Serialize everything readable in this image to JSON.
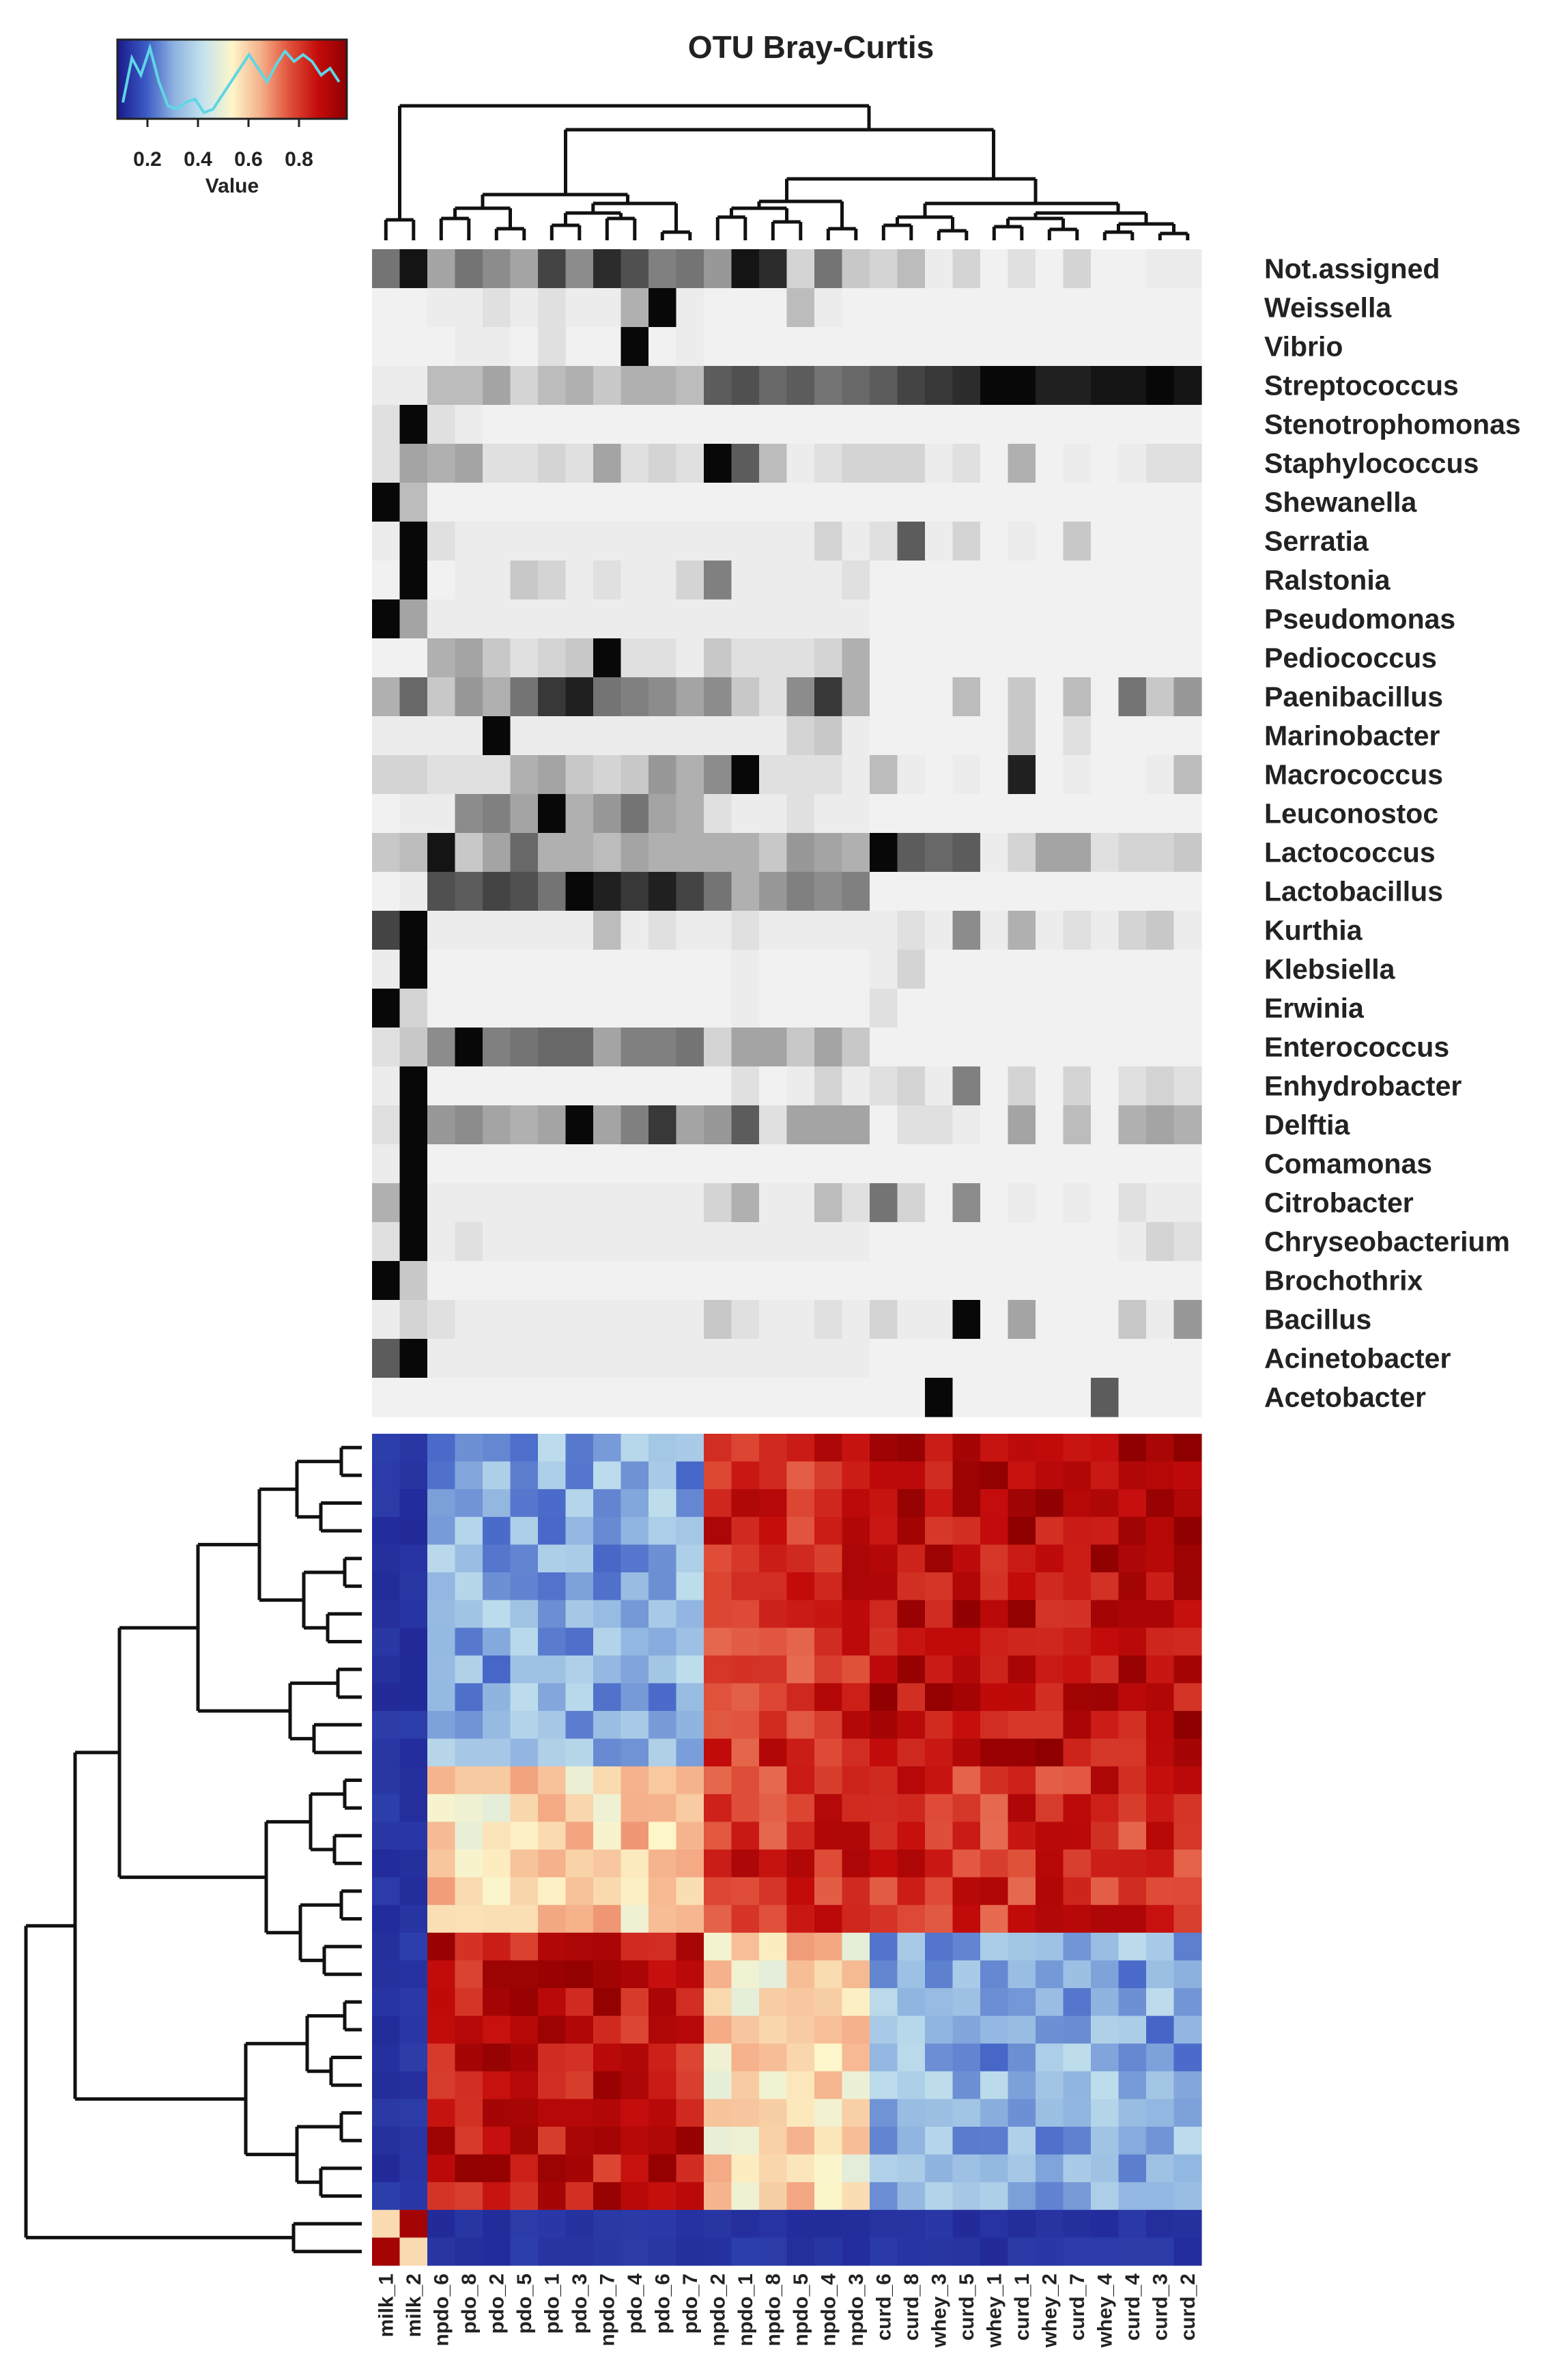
{
  "chart_data": {
    "type": "heatmap",
    "title": "OTU Bray-Curtis",
    "legend": {
      "title": "Value",
      "ticks": [
        "0.2",
        "0.4",
        "0.6",
        "0.8"
      ],
      "palette": [
        "#1a1a8c",
        "#3b5bc4",
        "#8fb4e0",
        "#c5e3ee",
        "#fdf6c9",
        "#f5b08a",
        "#e0513a",
        "#c40b0b",
        "#8e0000"
      ],
      "histogram_color": "#5fd6e6",
      "placement": "top-left"
    },
    "samples": [
      "milk_1",
      "milk_2",
      "npdo_6",
      "pdo_8",
      "pdo_2",
      "pdo_5",
      "pdo_1",
      "pdo_3",
      "npdo_7",
      "pdo_4",
      "pdo_6",
      "pdo_7",
      "npdo_2",
      "npdo_1",
      "npdo_8",
      "npdo_5",
      "npdo_4",
      "npdo_3",
      "curd_6",
      "curd_8",
      "whey_3",
      "curd_5",
      "whey_1",
      "curd_1",
      "whey_2",
      "curd_7",
      "whey_4",
      "curd_4",
      "curd_3",
      "curd_2"
    ],
    "taxa": [
      "Not.assigned",
      "Weissella",
      "Vibrio",
      "Streptococcus",
      "Stenotrophomonas",
      "Staphylococcus",
      "Shewanella",
      "Serratia",
      "Ralstonia",
      "Pseudomonas",
      "Pediococcus",
      "Paenibacillus",
      "Marinobacter",
      "Macrococcus",
      "Leuconostoc",
      "Lactococcus",
      "Lactobacillus",
      "Kurthia",
      "Klebsiella",
      "Erwinia",
      "Enterococcus",
      "Enhydrobacter",
      "Delftia",
      "Comamonas",
      "Citrobacter",
      "Chryseobacterium",
      "Brochothrix",
      "Bacillus",
      "Acinetobacter",
      "Acetobacter"
    ],
    "abundance_grid": [
      [
        0.55,
        0.95,
        0.35,
        0.55,
        0.45,
        0.35,
        0.75,
        0.45,
        0.85,
        0.7,
        0.5,
        0.55,
        0.4,
        0.95,
        0.85,
        0.15,
        0.55,
        0.2,
        0.15,
        0.25,
        0.05,
        0.15,
        0.03,
        0.1,
        0.03,
        0.15,
        0.03,
        0.03,
        0.05,
        0.05
      ],
      [
        0.03,
        0.03,
        0.05,
        0.05,
        0.1,
        0.05,
        0.1,
        0.05,
        0.05,
        0.3,
        1.0,
        0.05,
        0.03,
        0.03,
        0.03,
        0.25,
        0.05,
        0.03,
        0.03,
        0.03,
        0.03,
        0.03,
        0.03,
        0.03,
        0.03,
        0.03,
        0.03,
        0.03,
        0.03,
        0.03
      ],
      [
        0.03,
        0.03,
        0.03,
        0.05,
        0.05,
        0.03,
        0.1,
        0.03,
        0.03,
        1.0,
        0.03,
        0.05,
        0.03,
        0.03,
        0.03,
        0.03,
        0.03,
        0.03,
        0.03,
        0.03,
        0.03,
        0.03,
        0.03,
        0.03,
        0.03,
        0.03,
        0.03,
        0.03,
        0.03,
        0.03
      ],
      [
        0.05,
        0.05,
        0.25,
        0.25,
        0.35,
        0.15,
        0.25,
        0.3,
        0.2,
        0.3,
        0.3,
        0.25,
        0.65,
        0.7,
        0.6,
        0.65,
        0.55,
        0.6,
        0.65,
        0.75,
        0.8,
        0.85,
        1.0,
        1.0,
        0.9,
        0.9,
        0.95,
        0.95,
        1.0,
        0.95
      ],
      [
        0.1,
        1.0,
        0.1,
        0.05,
        0.03,
        0.03,
        0.03,
        0.03,
        0.03,
        0.03,
        0.03,
        0.03,
        0.03,
        0.03,
        0.03,
        0.03,
        0.03,
        0.03,
        0.03,
        0.03,
        0.03,
        0.03,
        0.03,
        0.03,
        0.03,
        0.03,
        0.03,
        0.03,
        0.03,
        0.03
      ],
      [
        0.1,
        0.35,
        0.3,
        0.35,
        0.1,
        0.1,
        0.15,
        0.1,
        0.35,
        0.1,
        0.15,
        0.1,
        1.0,
        0.65,
        0.25,
        0.05,
        0.1,
        0.15,
        0.15,
        0.15,
        0.05,
        0.1,
        0.03,
        0.3,
        0.03,
        0.05,
        0.03,
        0.05,
        0.1,
        0.1
      ],
      [
        1.0,
        0.25,
        0.03,
        0.03,
        0.03,
        0.03,
        0.03,
        0.03,
        0.03,
        0.03,
        0.03,
        0.03,
        0.03,
        0.03,
        0.03,
        0.03,
        0.03,
        0.03,
        0.03,
        0.03,
        0.03,
        0.03,
        0.03,
        0.03,
        0.03,
        0.03,
        0.03,
        0.03,
        0.03,
        0.03
      ],
      [
        0.05,
        1.0,
        0.1,
        0.05,
        0.05,
        0.05,
        0.05,
        0.05,
        0.05,
        0.05,
        0.05,
        0.05,
        0.05,
        0.05,
        0.05,
        0.05,
        0.15,
        0.05,
        0.1,
        0.65,
        0.05,
        0.15,
        0.03,
        0.05,
        0.03,
        0.2,
        0.03,
        0.03,
        0.03,
        0.03
      ],
      [
        0.03,
        1.0,
        0.03,
        0.05,
        0.05,
        0.2,
        0.15,
        0.05,
        0.1,
        0.05,
        0.05,
        0.15,
        0.5,
        0.05,
        0.05,
        0.05,
        0.05,
        0.1,
        0.03,
        0.03,
        0.03,
        0.03,
        0.03,
        0.03,
        0.03,
        0.03,
        0.03,
        0.03,
        0.03,
        0.03
      ],
      [
        1.0,
        0.35,
        0.05,
        0.05,
        0.05,
        0.05,
        0.05,
        0.05,
        0.05,
        0.05,
        0.05,
        0.05,
        0.05,
        0.05,
        0.05,
        0.05,
        0.05,
        0.05,
        0.03,
        0.03,
        0.03,
        0.03,
        0.03,
        0.03,
        0.03,
        0.03,
        0.03,
        0.03,
        0.03,
        0.03
      ],
      [
        0.03,
        0.03,
        0.3,
        0.35,
        0.2,
        0.1,
        0.15,
        0.2,
        1.0,
        0.1,
        0.1,
        0.05,
        0.2,
        0.1,
        0.1,
        0.1,
        0.15,
        0.3,
        0.03,
        0.03,
        0.03,
        0.03,
        0.03,
        0.03,
        0.03,
        0.03,
        0.03,
        0.03,
        0.03,
        0.03
      ],
      [
        0.3,
        0.6,
        0.2,
        0.4,
        0.3,
        0.55,
        0.8,
        0.9,
        0.55,
        0.5,
        0.45,
        0.35,
        0.45,
        0.2,
        0.1,
        0.45,
        0.8,
        0.3,
        0.03,
        0.03,
        0.03,
        0.25,
        0.03,
        0.2,
        0.03,
        0.25,
        0.03,
        0.55,
        0.2,
        0.4
      ],
      [
        0.05,
        0.05,
        0.05,
        0.05,
        1.0,
        0.05,
        0.05,
        0.05,
        0.05,
        0.05,
        0.05,
        0.05,
        0.05,
        0.05,
        0.05,
        0.15,
        0.2,
        0.05,
        0.03,
        0.03,
        0.03,
        0.03,
        0.03,
        0.2,
        0.03,
        0.1,
        0.03,
        0.03,
        0.03,
        0.03
      ],
      [
        0.15,
        0.15,
        0.1,
        0.1,
        0.1,
        0.3,
        0.35,
        0.2,
        0.15,
        0.2,
        0.4,
        0.3,
        0.45,
        1.0,
        0.1,
        0.1,
        0.1,
        0.05,
        0.25,
        0.05,
        0.03,
        0.05,
        0.03,
        0.9,
        0.03,
        0.05,
        0.03,
        0.03,
        0.05,
        0.25
      ],
      [
        0.03,
        0.05,
        0.05,
        0.45,
        0.5,
        0.35,
        1.0,
        0.3,
        0.4,
        0.55,
        0.35,
        0.3,
        0.1,
        0.05,
        0.05,
        0.1,
        0.05,
        0.05,
        0.03,
        0.03,
        0.03,
        0.03,
        0.03,
        0.03,
        0.03,
        0.03,
        0.03,
        0.03,
        0.03,
        0.03
      ],
      [
        0.2,
        0.25,
        0.95,
        0.2,
        0.35,
        0.6,
        0.3,
        0.3,
        0.25,
        0.35,
        0.3,
        0.3,
        0.3,
        0.3,
        0.2,
        0.4,
        0.35,
        0.3,
        1.0,
        0.65,
        0.6,
        0.65,
        0.05,
        0.15,
        0.35,
        0.35,
        0.1,
        0.15,
        0.15,
        0.2
      ],
      [
        0.03,
        0.05,
        0.7,
        0.65,
        0.75,
        0.7,
        0.55,
        1.0,
        0.9,
        0.8,
        0.9,
        0.75,
        0.55,
        0.3,
        0.4,
        0.5,
        0.45,
        0.5,
        0.03,
        0.03,
        0.03,
        0.03,
        0.03,
        0.03,
        0.03,
        0.03,
        0.03,
        0.03,
        0.03,
        0.03
      ],
      [
        0.75,
        1.0,
        0.05,
        0.05,
        0.05,
        0.05,
        0.05,
        0.05,
        0.25,
        0.05,
        0.1,
        0.05,
        0.05,
        0.1,
        0.05,
        0.05,
        0.05,
        0.05,
        0.05,
        0.1,
        0.05,
        0.45,
        0.05,
        0.3,
        0.05,
        0.1,
        0.05,
        0.15,
        0.2,
        0.05
      ],
      [
        0.05,
        1.0,
        0.03,
        0.03,
        0.03,
        0.03,
        0.03,
        0.03,
        0.03,
        0.03,
        0.03,
        0.03,
        0.03,
        0.05,
        0.03,
        0.03,
        0.03,
        0.03,
        0.05,
        0.15,
        0.03,
        0.03,
        0.03,
        0.03,
        0.03,
        0.03,
        0.03,
        0.03,
        0.03,
        0.03
      ],
      [
        1.0,
        0.15,
        0.03,
        0.03,
        0.03,
        0.03,
        0.03,
        0.03,
        0.03,
        0.03,
        0.03,
        0.03,
        0.03,
        0.05,
        0.03,
        0.03,
        0.03,
        0.03,
        0.1,
        0.03,
        0.03,
        0.03,
        0.03,
        0.03,
        0.03,
        0.03,
        0.03,
        0.03,
        0.03,
        0.03
      ],
      [
        0.1,
        0.2,
        0.45,
        1.0,
        0.5,
        0.55,
        0.6,
        0.6,
        0.35,
        0.5,
        0.5,
        0.55,
        0.15,
        0.35,
        0.35,
        0.2,
        0.35,
        0.2,
        0.03,
        0.03,
        0.03,
        0.03,
        0.03,
        0.03,
        0.03,
        0.03,
        0.03,
        0.03,
        0.03,
        0.03
      ],
      [
        0.05,
        1.0,
        0.03,
        0.03,
        0.03,
        0.03,
        0.03,
        0.03,
        0.03,
        0.03,
        0.03,
        0.03,
        0.03,
        0.1,
        0.03,
        0.05,
        0.15,
        0.05,
        0.1,
        0.15,
        0.05,
        0.5,
        0.03,
        0.15,
        0.03,
        0.15,
        0.03,
        0.1,
        0.15,
        0.1
      ],
      [
        0.1,
        1.0,
        0.4,
        0.45,
        0.35,
        0.3,
        0.35,
        1.0,
        0.35,
        0.5,
        0.8,
        0.35,
        0.4,
        0.65,
        0.1,
        0.35,
        0.35,
        0.35,
        0.03,
        0.1,
        0.1,
        0.05,
        0.03,
        0.35,
        0.03,
        0.25,
        0.03,
        0.3,
        0.35,
        0.3
      ],
      [
        0.05,
        1.0,
        0.03,
        0.03,
        0.03,
        0.03,
        0.03,
        0.03,
        0.03,
        0.03,
        0.03,
        0.03,
        0.03,
        0.03,
        0.03,
        0.03,
        0.03,
        0.03,
        0.03,
        0.03,
        0.03,
        0.03,
        0.03,
        0.03,
        0.03,
        0.03,
        0.03,
        0.03,
        0.03,
        0.03
      ],
      [
        0.3,
        1.0,
        0.05,
        0.05,
        0.05,
        0.05,
        0.05,
        0.05,
        0.05,
        0.05,
        0.05,
        0.05,
        0.15,
        0.3,
        0.05,
        0.05,
        0.25,
        0.1,
        0.55,
        0.15,
        0.03,
        0.45,
        0.03,
        0.05,
        0.03,
        0.05,
        0.03,
        0.1,
        0.05,
        0.05
      ],
      [
        0.1,
        1.0,
        0.05,
        0.1,
        0.05,
        0.05,
        0.05,
        0.05,
        0.05,
        0.05,
        0.05,
        0.05,
        0.05,
        0.05,
        0.05,
        0.05,
        0.05,
        0.05,
        0.03,
        0.03,
        0.03,
        0.03,
        0.03,
        0.03,
        0.03,
        0.03,
        0.03,
        0.05,
        0.15,
        0.1
      ],
      [
        1.0,
        0.2,
        0.03,
        0.03,
        0.03,
        0.03,
        0.03,
        0.03,
        0.03,
        0.03,
        0.03,
        0.03,
        0.03,
        0.03,
        0.03,
        0.03,
        0.03,
        0.03,
        0.03,
        0.03,
        0.03,
        0.03,
        0.03,
        0.03,
        0.03,
        0.03,
        0.03,
        0.03,
        0.03,
        0.03
      ],
      [
        0.05,
        0.15,
        0.1,
        0.05,
        0.05,
        0.05,
        0.05,
        0.05,
        0.05,
        0.05,
        0.05,
        0.05,
        0.2,
        0.1,
        0.05,
        0.05,
        0.1,
        0.05,
        0.15,
        0.05,
        0.05,
        1.0,
        0.03,
        0.35,
        0.03,
        0.03,
        0.03,
        0.2,
        0.05,
        0.4
      ],
      [
        0.65,
        1.0,
        0.05,
        0.05,
        0.05,
        0.05,
        0.05,
        0.05,
        0.05,
        0.05,
        0.05,
        0.05,
        0.05,
        0.05,
        0.05,
        0.05,
        0.05,
        0.05,
        0.03,
        0.03,
        0.03,
        0.03,
        0.03,
        0.03,
        0.03,
        0.03,
        0.03,
        0.03,
        0.03,
        0.03
      ],
      [
        0.03,
        0.03,
        0.03,
        0.03,
        0.03,
        0.03,
        0.03,
        0.03,
        0.03,
        0.03,
        0.03,
        0.03,
        0.03,
        0.03,
        0.03,
        0.03,
        0.03,
        0.03,
        0.03,
        0.03,
        1.0,
        0.03,
        0.03,
        0.03,
        0.03,
        0.03,
        0.65,
        0.03,
        0.03,
        0.03
      ]
    ],
    "distance_groups": [
      "milk_1",
      "milk_2",
      "pdo",
      "pdo",
      "pdo",
      "pdo",
      "pdo",
      "pdo",
      "pdo",
      "pdo",
      "pdo",
      "pdo",
      "npdo",
      "npdo",
      "npdo",
      "npdo",
      "npdo",
      "npdo",
      "curd",
      "curd",
      "curd",
      "curd",
      "curd",
      "curd",
      "curd",
      "curd",
      "curd",
      "curd",
      "curd",
      "curd"
    ],
    "distance_rows_order": [
      "curd",
      "curd",
      "curd",
      "curd",
      "curd",
      "curd",
      "curd",
      "curd",
      "curd",
      "curd",
      "curd",
      "curd",
      "npdo",
      "npdo",
      "npdo",
      "npdo",
      "npdo",
      "npdo",
      "pdo",
      "pdo",
      "pdo",
      "pdo",
      "pdo",
      "pdo",
      "pdo",
      "pdo",
      "pdo",
      "pdo",
      "milk_2",
      "milk_1"
    ],
    "block_values": {
      "curd-curd": 0.9,
      "curd-npdo": 0.82,
      "curd-pdo": 0.25,
      "curd-milk": 0.05,
      "npdo-npdo": 0.82,
      "npdo-pdo": 0.55,
      "npdo-milk": 0.05,
      "pdo-pdo": 0.88,
      "pdo-milk": 0.05,
      "milk-milk": 0.95,
      "milk1-milk2": 0.55
    }
  }
}
